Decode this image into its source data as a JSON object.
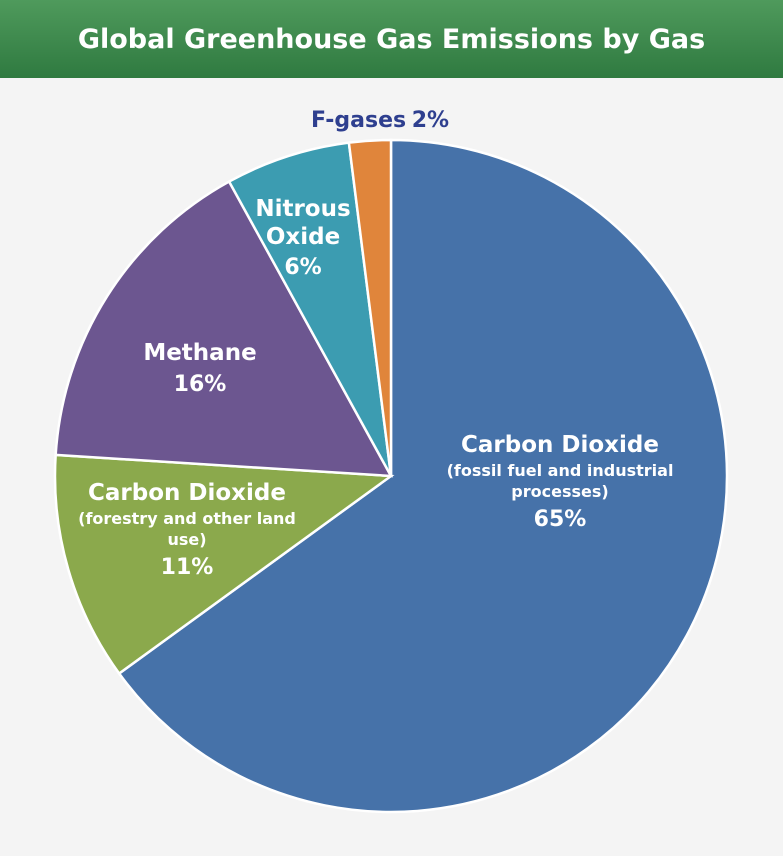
{
  "chart_data": {
    "type": "pie",
    "title": "Global Greenhouse Gas Emissions by Gas",
    "categories": [
      "Carbon Dioxide",
      "Carbon Dioxide",
      "Methane",
      "Nitrous Oxide",
      "F-gases"
    ],
    "notes": [
      "(fossil fuel and industrial processes)",
      "(forestry and other land use)",
      null,
      null,
      null
    ],
    "values": [
      65,
      11,
      16,
      6,
      2
    ],
    "value_labels": [
      "65%",
      "11%",
      "16%",
      "6%",
      "2%"
    ],
    "colors": [
      "#4672a9",
      "#8ba94c",
      "#6c5690",
      "#3c9cb1",
      "#e0853b"
    ]
  }
}
